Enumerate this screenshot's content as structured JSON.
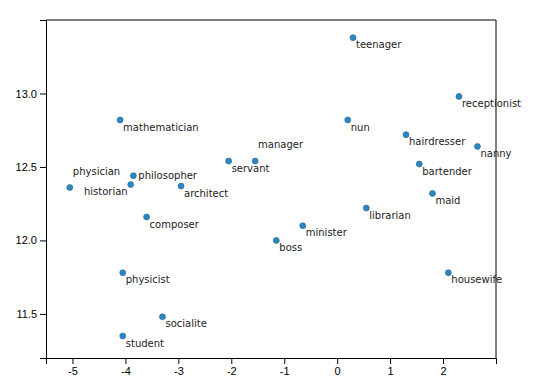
{
  "chart_data": {
    "type": "scatter",
    "x": [
      0.3,
      2.3,
      -4.1,
      0.2,
      1.3,
      2.65,
      -2.05,
      -1.55,
      1.55,
      -3.85,
      -3.9,
      -2.95,
      -5.05,
      1.8,
      0.55,
      -3.6,
      -0.65,
      -1.15,
      -4.05,
      2.1,
      -3.3,
      -4.05
    ],
    "values": [
      13.38,
      12.98,
      12.82,
      12.82,
      12.72,
      12.64,
      12.54,
      12.54,
      12.52,
      12.44,
      12.38,
      12.37,
      12.36,
      12.32,
      12.22,
      12.16,
      12.1,
      12.0,
      11.78,
      11.78,
      11.48,
      11.35
    ],
    "labels": [
      "teenager",
      "receptionist",
      "mathematician",
      "nun",
      "hairdresser",
      "nanny",
      "servant",
      "manager",
      "bartender",
      "philosopher",
      "historian",
      "architect",
      "physician",
      "maid",
      "librarian",
      "composer",
      "minister",
      "boss",
      "physicist",
      "housewife",
      "socialite",
      "student"
    ],
    "color": "#2e86c1",
    "xlim": [
      -5.5,
      3.0
    ],
    "ylim": [
      11.2,
      13.5
    ],
    "xticks": [
      -5,
      -4,
      -3,
      -2,
      -1,
      0,
      1,
      2
    ],
    "yticks": [
      {
        "value": 11.5,
        "label": "11.5"
      },
      {
        "value": 12.0,
        "label": "12.0"
      },
      {
        "value": 12.5,
        "label": "12.5"
      },
      {
        "value": 13.0,
        "label": "13.0"
      }
    ],
    "grid": false
  }
}
